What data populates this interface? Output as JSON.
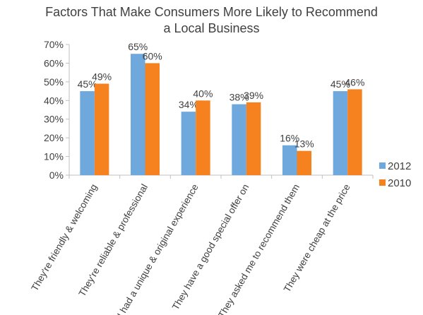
{
  "chart_data": {
    "type": "bar",
    "title_lines": [
      "Factors That Make Consumers More Likely to Recommend",
      "a Local Business"
    ],
    "categories": [
      "They're friendly & welcoming",
      "They're reliable & professional",
      "I had a unique & original experience",
      "They have a good special offer on",
      "They asked me to recommend them",
      "They were cheap at the price"
    ],
    "series": [
      {
        "name": "2012",
        "color": "#6fa8dc",
        "values": [
          45,
          65,
          34,
          38,
          16,
          45
        ]
      },
      {
        "name": "2010",
        "color": "#f6821f",
        "values": [
          49,
          60,
          40,
          39,
          13,
          46
        ]
      }
    ],
    "data_label_suffix": "%",
    "ylim": [
      0,
      70
    ],
    "y_ticks": [
      0,
      10,
      20,
      30,
      40,
      50,
      60,
      70
    ],
    "y_tick_labels": [
      "0%",
      "10%",
      "20%",
      "30%",
      "40%",
      "50%",
      "60%",
      "70%"
    ],
    "xlabel": "",
    "ylabel": "",
    "grid": false,
    "legend_position": "right"
  }
}
